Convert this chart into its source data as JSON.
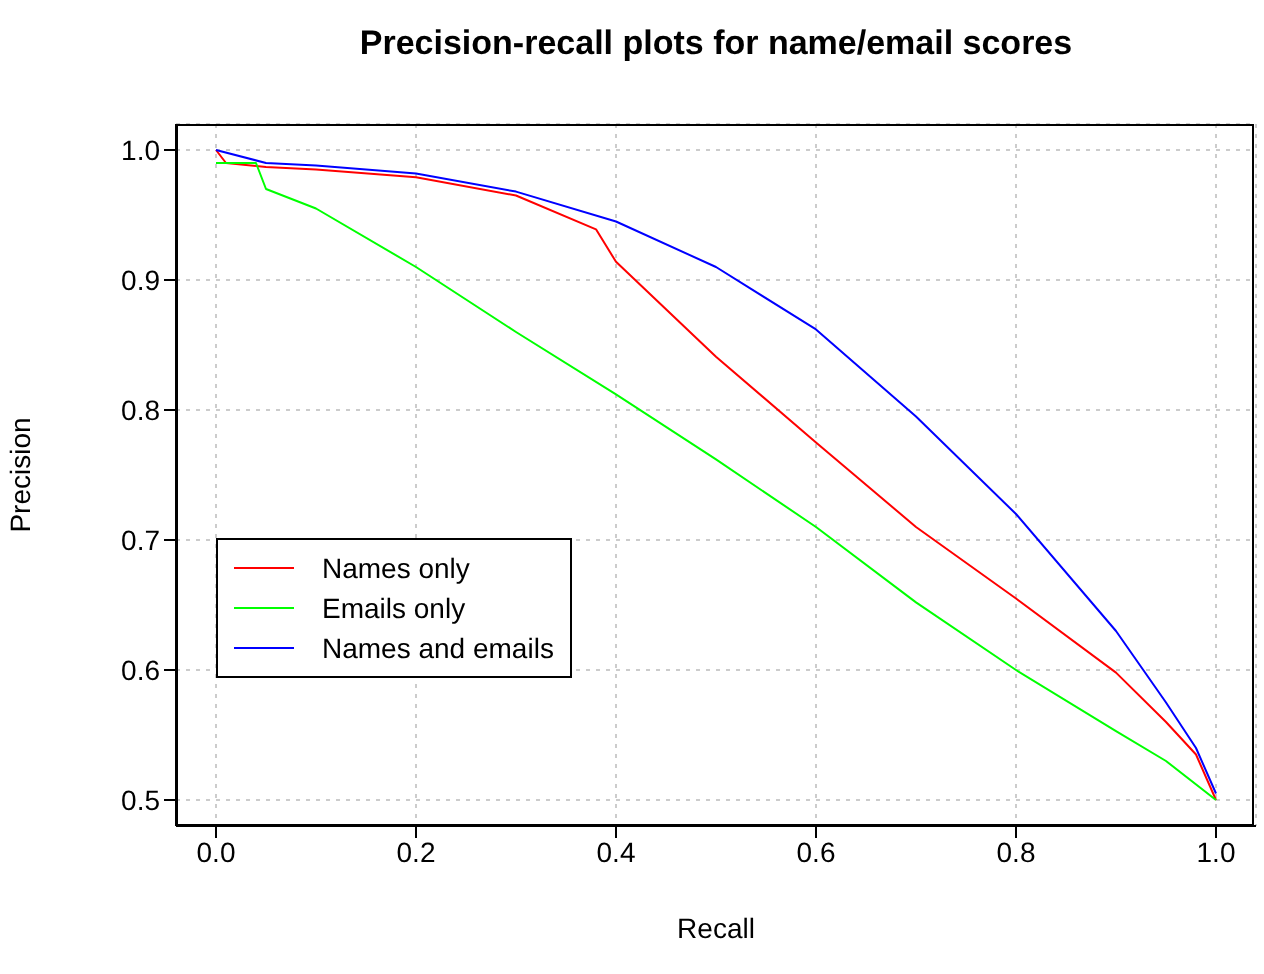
{
  "chart_data": {
    "type": "line",
    "title": "Precision-recall plots for name/email scores",
    "xlabel": "Recall",
    "ylabel": "Precision",
    "xlim": [
      -0.04,
      1.04
    ],
    "ylim": [
      0.48,
      1.02
    ],
    "xticks": [
      {
        "value": 0,
        "label": "0.0"
      },
      0.2,
      0.4,
      0.6,
      0.8,
      {
        "value": 1,
        "label": "1.0"
      }
    ],
    "yticks": [
      0.5,
      0.6,
      0.7,
      0.8,
      0.9,
      {
        "value": 1,
        "label": "1.0"
      }
    ],
    "grid": true,
    "legend": "bottom left",
    "line_style": "solid",
    "marker": "none",
    "series": [
      {
        "name": "Names only",
        "color": "#ff0000",
        "x": [
          0,
          0.01,
          0.05,
          0.1,
          0.2,
          0.3,
          0.38,
          0.4,
          0.5,
          0.6,
          0.7,
          0.8,
          0.9,
          0.95,
          0.98,
          1.0
        ],
        "values": [
          1.0,
          0.99,
          0.987,
          0.985,
          0.979,
          0.965,
          0.939,
          0.914,
          0.841,
          0.775,
          0.71,
          0.655,
          0.598,
          0.56,
          0.535,
          0.5
        ]
      },
      {
        "name": "Emails only",
        "color": "#00ff00",
        "x": [
          0,
          0.04,
          0.05,
          0.1,
          0.2,
          0.3,
          0.4,
          0.5,
          0.6,
          0.7,
          0.8,
          0.9,
          0.95,
          1.0
        ],
        "values": [
          0.99,
          0.99,
          0.97,
          0.955,
          0.91,
          0.86,
          0.812,
          0.762,
          0.71,
          0.652,
          0.6,
          0.553,
          0.53,
          0.5
        ]
      },
      {
        "name": "Names and emails",
        "color": "#0000ff",
        "x": [
          0,
          0.05,
          0.1,
          0.2,
          0.3,
          0.4,
          0.5,
          0.6,
          0.7,
          0.8,
          0.9,
          0.95,
          0.98,
          1.0
        ],
        "values": [
          1.0,
          0.99,
          0.988,
          0.982,
          0.968,
          0.945,
          0.91,
          0.862,
          0.795,
          0.72,
          0.63,
          0.575,
          0.54,
          0.505
        ]
      }
    ]
  }
}
